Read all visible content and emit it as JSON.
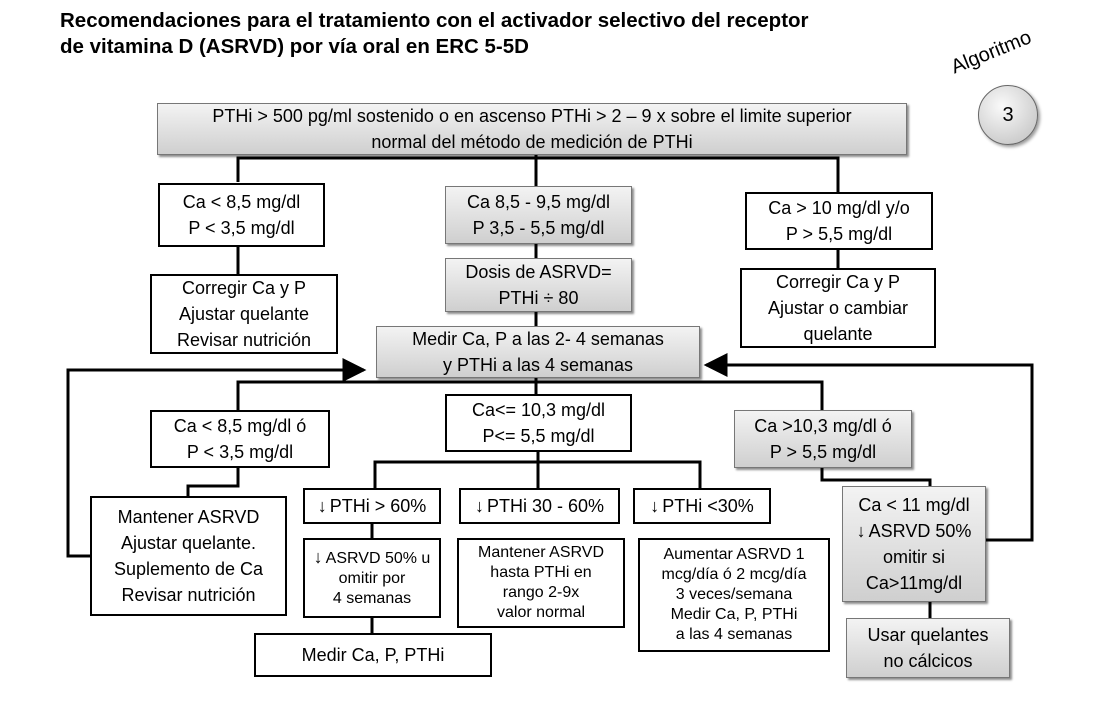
{
  "title": {
    "line1": "Recomendaciones para el tratamiento con el activador selectivo del receptor",
    "line2": "de vitamina D (ASRVD) por vía oral en ERC 5-5D"
  },
  "badge": {
    "word": "Algoritmo",
    "number": "3"
  },
  "boxes": {
    "top": {
      "l1": "PTHi > 500 pg/ml sostenido o en ascenso PTHi > 2 – 9 x sobre el limite superior",
      "l2": "normal del método de medición de PTHi"
    },
    "ca_low": {
      "l1": "Ca < 8,5 mg/dl",
      "l2": "P < 3,5 mg/dl"
    },
    "ca_mid": {
      "l1": "Ca 8,5 - 9,5 mg/dl",
      "l2": "P 3,5 - 5,5 mg/dl"
    },
    "ca_high": {
      "l1": "Ca > 10 mg/dl y/o",
      "l2": "P > 5,5 mg/dl"
    },
    "corregir_left": {
      "l1": "Corregir Ca y P",
      "l2": "Ajustar quelante",
      "l3": "Revisar nutrición"
    },
    "dosis": {
      "l1": "Dosis de ASRVD=",
      "l2": "PTHi ÷ 80"
    },
    "corregir_right": {
      "l1": "Corregir Ca y P",
      "l2": "Ajustar o cambiar",
      "l3": "quelante"
    },
    "medir": {
      "l1": "Medir Ca, P a las 2- 4 semanas",
      "l2": "y PTHi a las 4 semanas"
    },
    "ca_low2": {
      "l1": "Ca < 8,5 mg/dl ó",
      "l2": "P < 3,5 mg/dl"
    },
    "ca_ok": {
      "l1": "Ca<= 10,3 mg/dl",
      "l2": "P<= 5,5 mg/dl"
    },
    "ca_high2": {
      "l1": "Ca >10,3 mg/dl ó",
      "l2": "P > 5,5 mg/dl"
    },
    "mantener_left": {
      "l1": "Mantener ASRVD",
      "l2": "Ajustar quelante.",
      "l3": "Suplemento de Ca",
      "l4": "Revisar nutrición"
    },
    "pthi_60": {
      "label": "PTHi > 60%"
    },
    "pthi_30_60": {
      "label": "PTHi 30 - 60%"
    },
    "pthi_30": {
      "label": "PTHi <30%"
    },
    "ca_11": {
      "l1": "Ca < 11 mg/dl",
      "l2": "ASRVD 50%",
      "l3": "omitir si",
      "l4": "Ca>11mg/dl"
    },
    "asrvd_50": {
      "l1": "ASRVD 50% u",
      "l2": "omitir por",
      "l3": "4 semanas"
    },
    "mantener_hasta": {
      "l1": "Mantener ASRVD",
      "l2": "hasta PTHi en",
      "l3": "rango 2-9x",
      "l4": "valor normal"
    },
    "aumentar": {
      "l1": "Aumentar ASRVD 1",
      "l2": "mcg/día ó 2 mcg/día",
      "l3": "3 veces/semana",
      "l4": "Medir Ca, P, PTHi",
      "l5": "a las 4 semanas"
    },
    "usar": {
      "l1": "Usar quelantes",
      "l2": "no cálcicos"
    },
    "medir_final": {
      "l1": "Medir Ca, P, PTHi"
    }
  }
}
